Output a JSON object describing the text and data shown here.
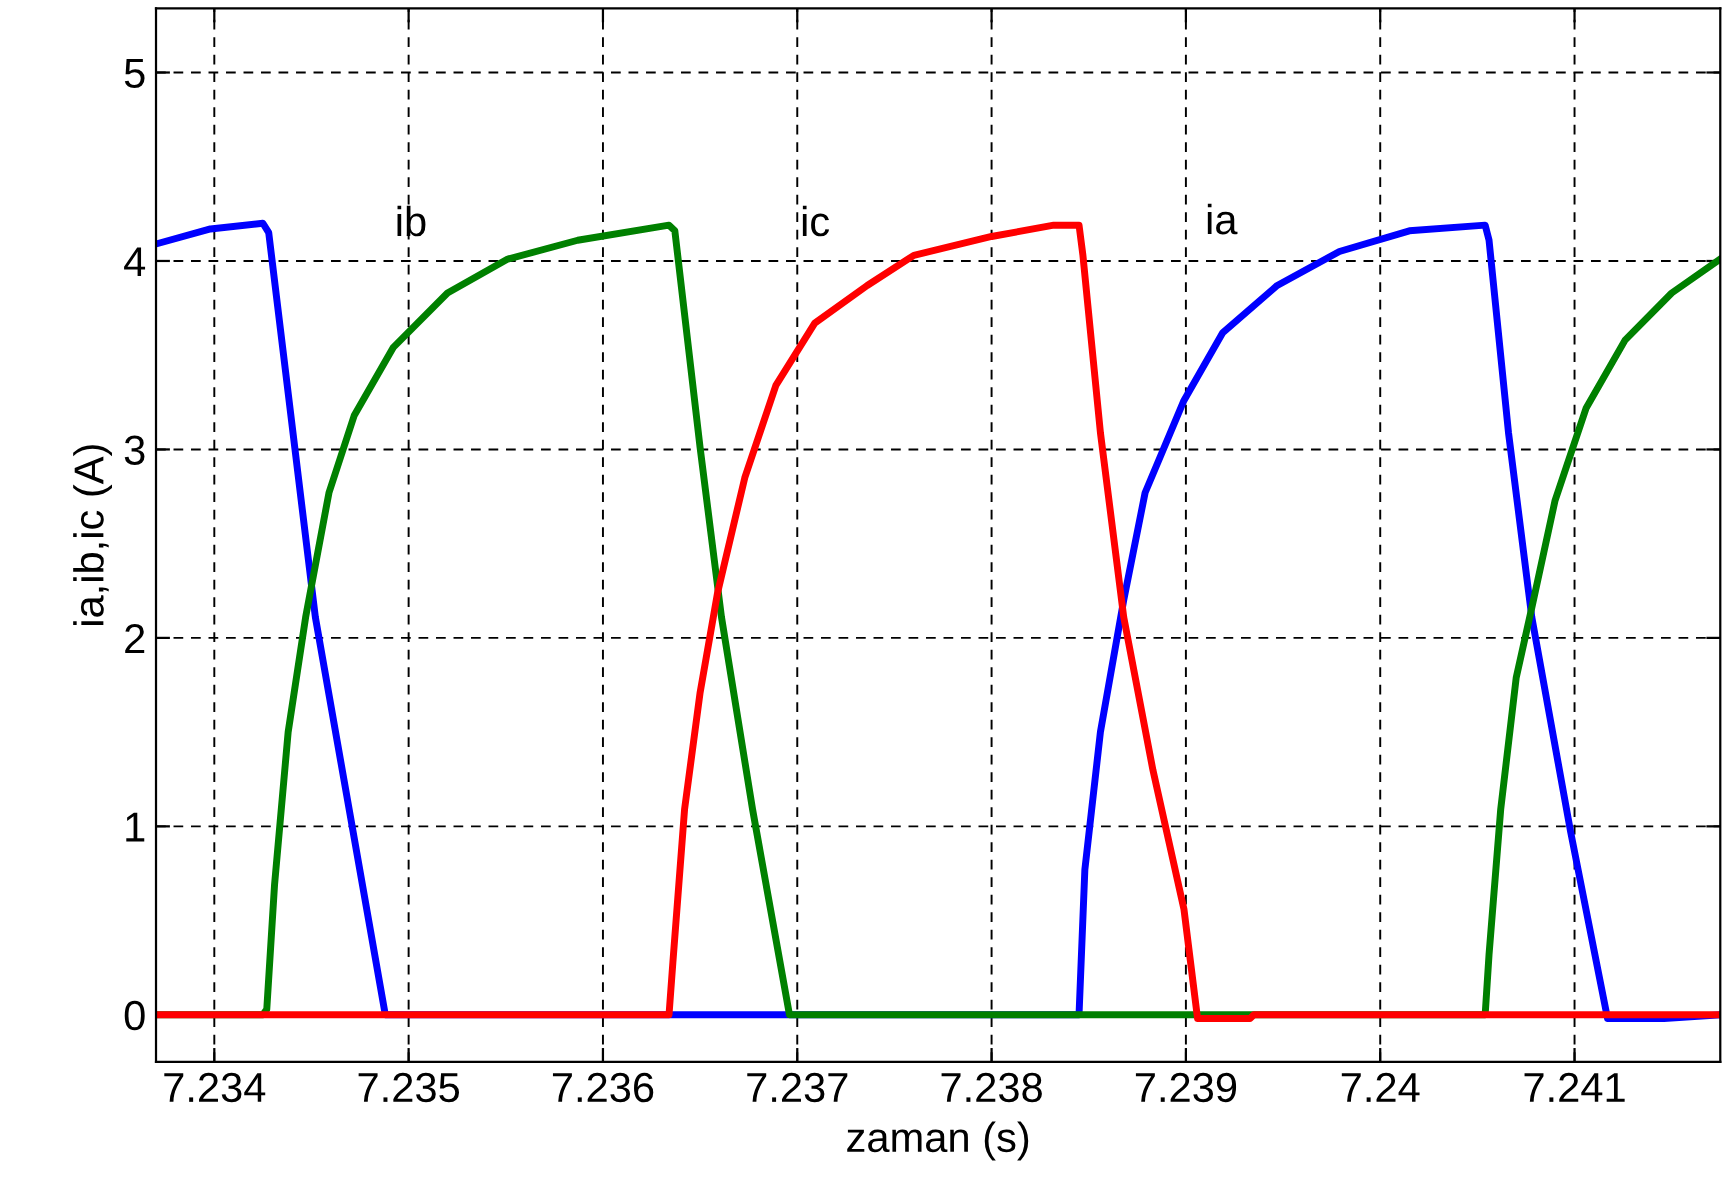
{
  "chart_data": {
    "type": "line",
    "xlabel": "zaman (s)",
    "ylabel": "ia,ib,ic (A)",
    "xlim": [
      7.2337,
      7.24175
    ],
    "ylim": [
      -0.25,
      5.34
    ],
    "xticks": [
      7.234,
      7.235,
      7.236,
      7.237,
      7.238,
      7.239,
      7.24,
      7.241
    ],
    "yticks": [
      0,
      1,
      2,
      3,
      4,
      5
    ],
    "grid": true,
    "line_style": "solid",
    "marker": "none",
    "series": [
      {
        "name": "ia",
        "color": "#0000ff",
        "x": [
          7.2337,
          7.23398,
          7.23425,
          7.23428,
          7.23452,
          7.23488,
          7.23845,
          7.23848,
          7.23856,
          7.23868,
          7.23879,
          7.23899,
          7.23919,
          7.23947,
          7.23979,
          7.24015,
          7.24054,
          7.24056,
          7.24066,
          7.24078,
          7.24098,
          7.24117,
          7.24146,
          7.24175
        ],
        "values": [
          4.09,
          4.17,
          4.2,
          4.15,
          2.11,
          0,
          0,
          0.77,
          1.5,
          2.2,
          2.77,
          3.26,
          3.62,
          3.87,
          4.05,
          4.16,
          4.19,
          4.11,
          3.09,
          2.11,
          0.97,
          -0.02,
          -0.02,
          0
        ]
      },
      {
        "name": "ib",
        "color": "#008000",
        "x": [
          7.2337,
          7.23425,
          7.23427,
          7.23431,
          7.23438,
          7.23447,
          7.23459,
          7.23472,
          7.23492,
          7.2352,
          7.23551,
          7.23587,
          7.23634,
          7.23637,
          7.2365,
          7.23661,
          7.23677,
          7.23696,
          7.24054,
          7.24056,
          7.24062,
          7.2407,
          7.24078,
          7.2409,
          7.24106,
          7.24126,
          7.2415,
          7.24175
        ],
        "values": [
          0,
          0,
          0.03,
          0.69,
          1.5,
          2.11,
          2.77,
          3.18,
          3.54,
          3.83,
          4.01,
          4.11,
          4.19,
          4.16,
          3.01,
          2.11,
          1.09,
          0,
          0,
          0.32,
          1.09,
          1.79,
          2.16,
          2.73,
          3.22,
          3.58,
          3.83,
          4.01
        ]
      },
      {
        "name": "ic",
        "color": "#ff0000",
        "x": [
          7.2337,
          7.23634,
          7.23636,
          7.23642,
          7.2365,
          7.23659,
          7.23673,
          7.23689,
          7.23709,
          7.23736,
          7.2376,
          7.238,
          7.23832,
          7.23845,
          7.23847,
          7.23856,
          7.23868,
          7.23883,
          7.23899,
          7.23906,
          7.23933,
          7.23935,
          7.24175
        ],
        "values": [
          0,
          0,
          0.28,
          1.09,
          1.71,
          2.24,
          2.85,
          3.34,
          3.67,
          3.87,
          4.03,
          4.13,
          4.19,
          4.19,
          4.03,
          3.09,
          2.11,
          1.3,
          0.56,
          -0.02,
          -0.02,
          0,
          0
        ]
      }
    ]
  }
}
